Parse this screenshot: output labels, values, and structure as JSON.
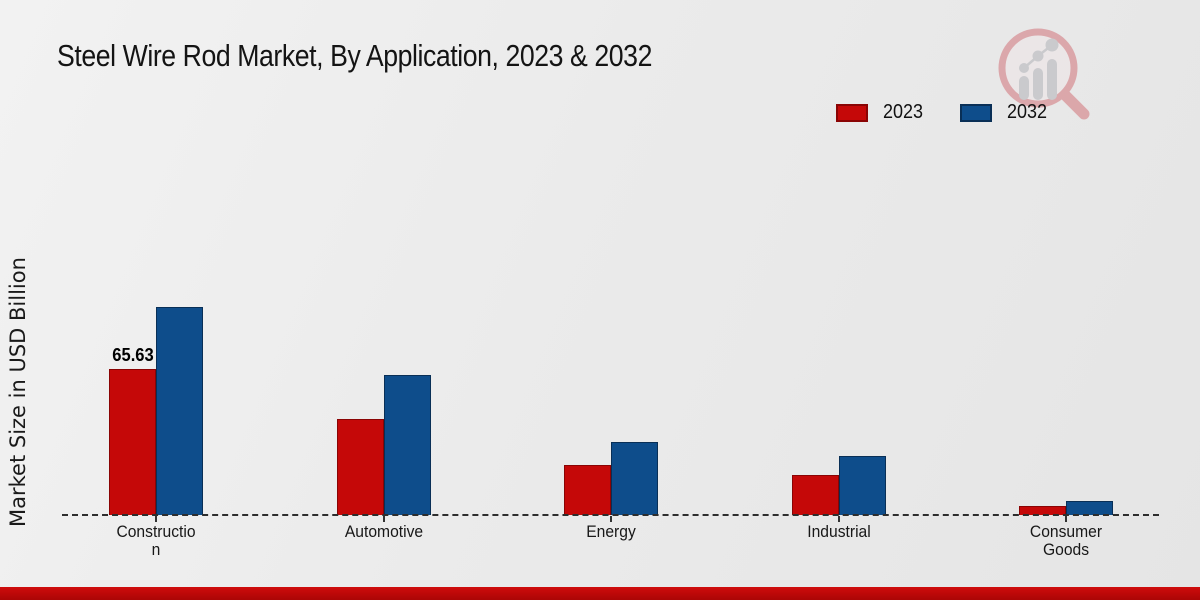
{
  "page": {
    "title": "Steel Wire Rod Market, By Application, 2023 & 2032"
  },
  "logo": {
    "icon": "magnifier-bar-chart-logo",
    "circle_color": "#d9989c",
    "bar_color": "#c3c3c7"
  },
  "legend": {
    "items": [
      {
        "label": "2023",
        "color": "#c50808",
        "edge": "#8a0404"
      },
      {
        "label": "2032",
        "color": "#0e4d8b",
        "edge": "#092f56"
      }
    ]
  },
  "axis": {
    "y_label": "Market Size in USD Billion"
  },
  "chart_data": {
    "type": "bar",
    "title": "Steel Wire Rod Market, By Application, 2023 & 2032",
    "xlabel": "",
    "ylabel": "Market Size in USD Billion",
    "categories": [
      "Construction",
      "Automotive",
      "Energy",
      "Industrial",
      "Consumer Goods"
    ],
    "category_label_lines": [
      [
        "Constructio",
        "n"
      ],
      [
        "Automotive"
      ],
      [
        "Energy"
      ],
      [
        "Industrial"
      ],
      [
        "Consumer",
        "Goods"
      ]
    ],
    "series": [
      {
        "name": "2023",
        "color": "#c50808",
        "edge": "#8a0404",
        "values": [
          65.63,
          43.1,
          22.6,
          18.1,
          3.9
        ]
      },
      {
        "name": "2032",
        "color": "#0e4d8b",
        "edge": "#092f56",
        "values": [
          93.1,
          62.6,
          32.9,
          26.3,
          6.2
        ]
      }
    ],
    "data_labels": [
      {
        "category_index": 0,
        "series_index": 0,
        "text": "65.63"
      }
    ],
    "ylim": [
      0,
      100
    ],
    "grid": false,
    "legend_position": "top-right",
    "baseline_style": "dashed"
  }
}
